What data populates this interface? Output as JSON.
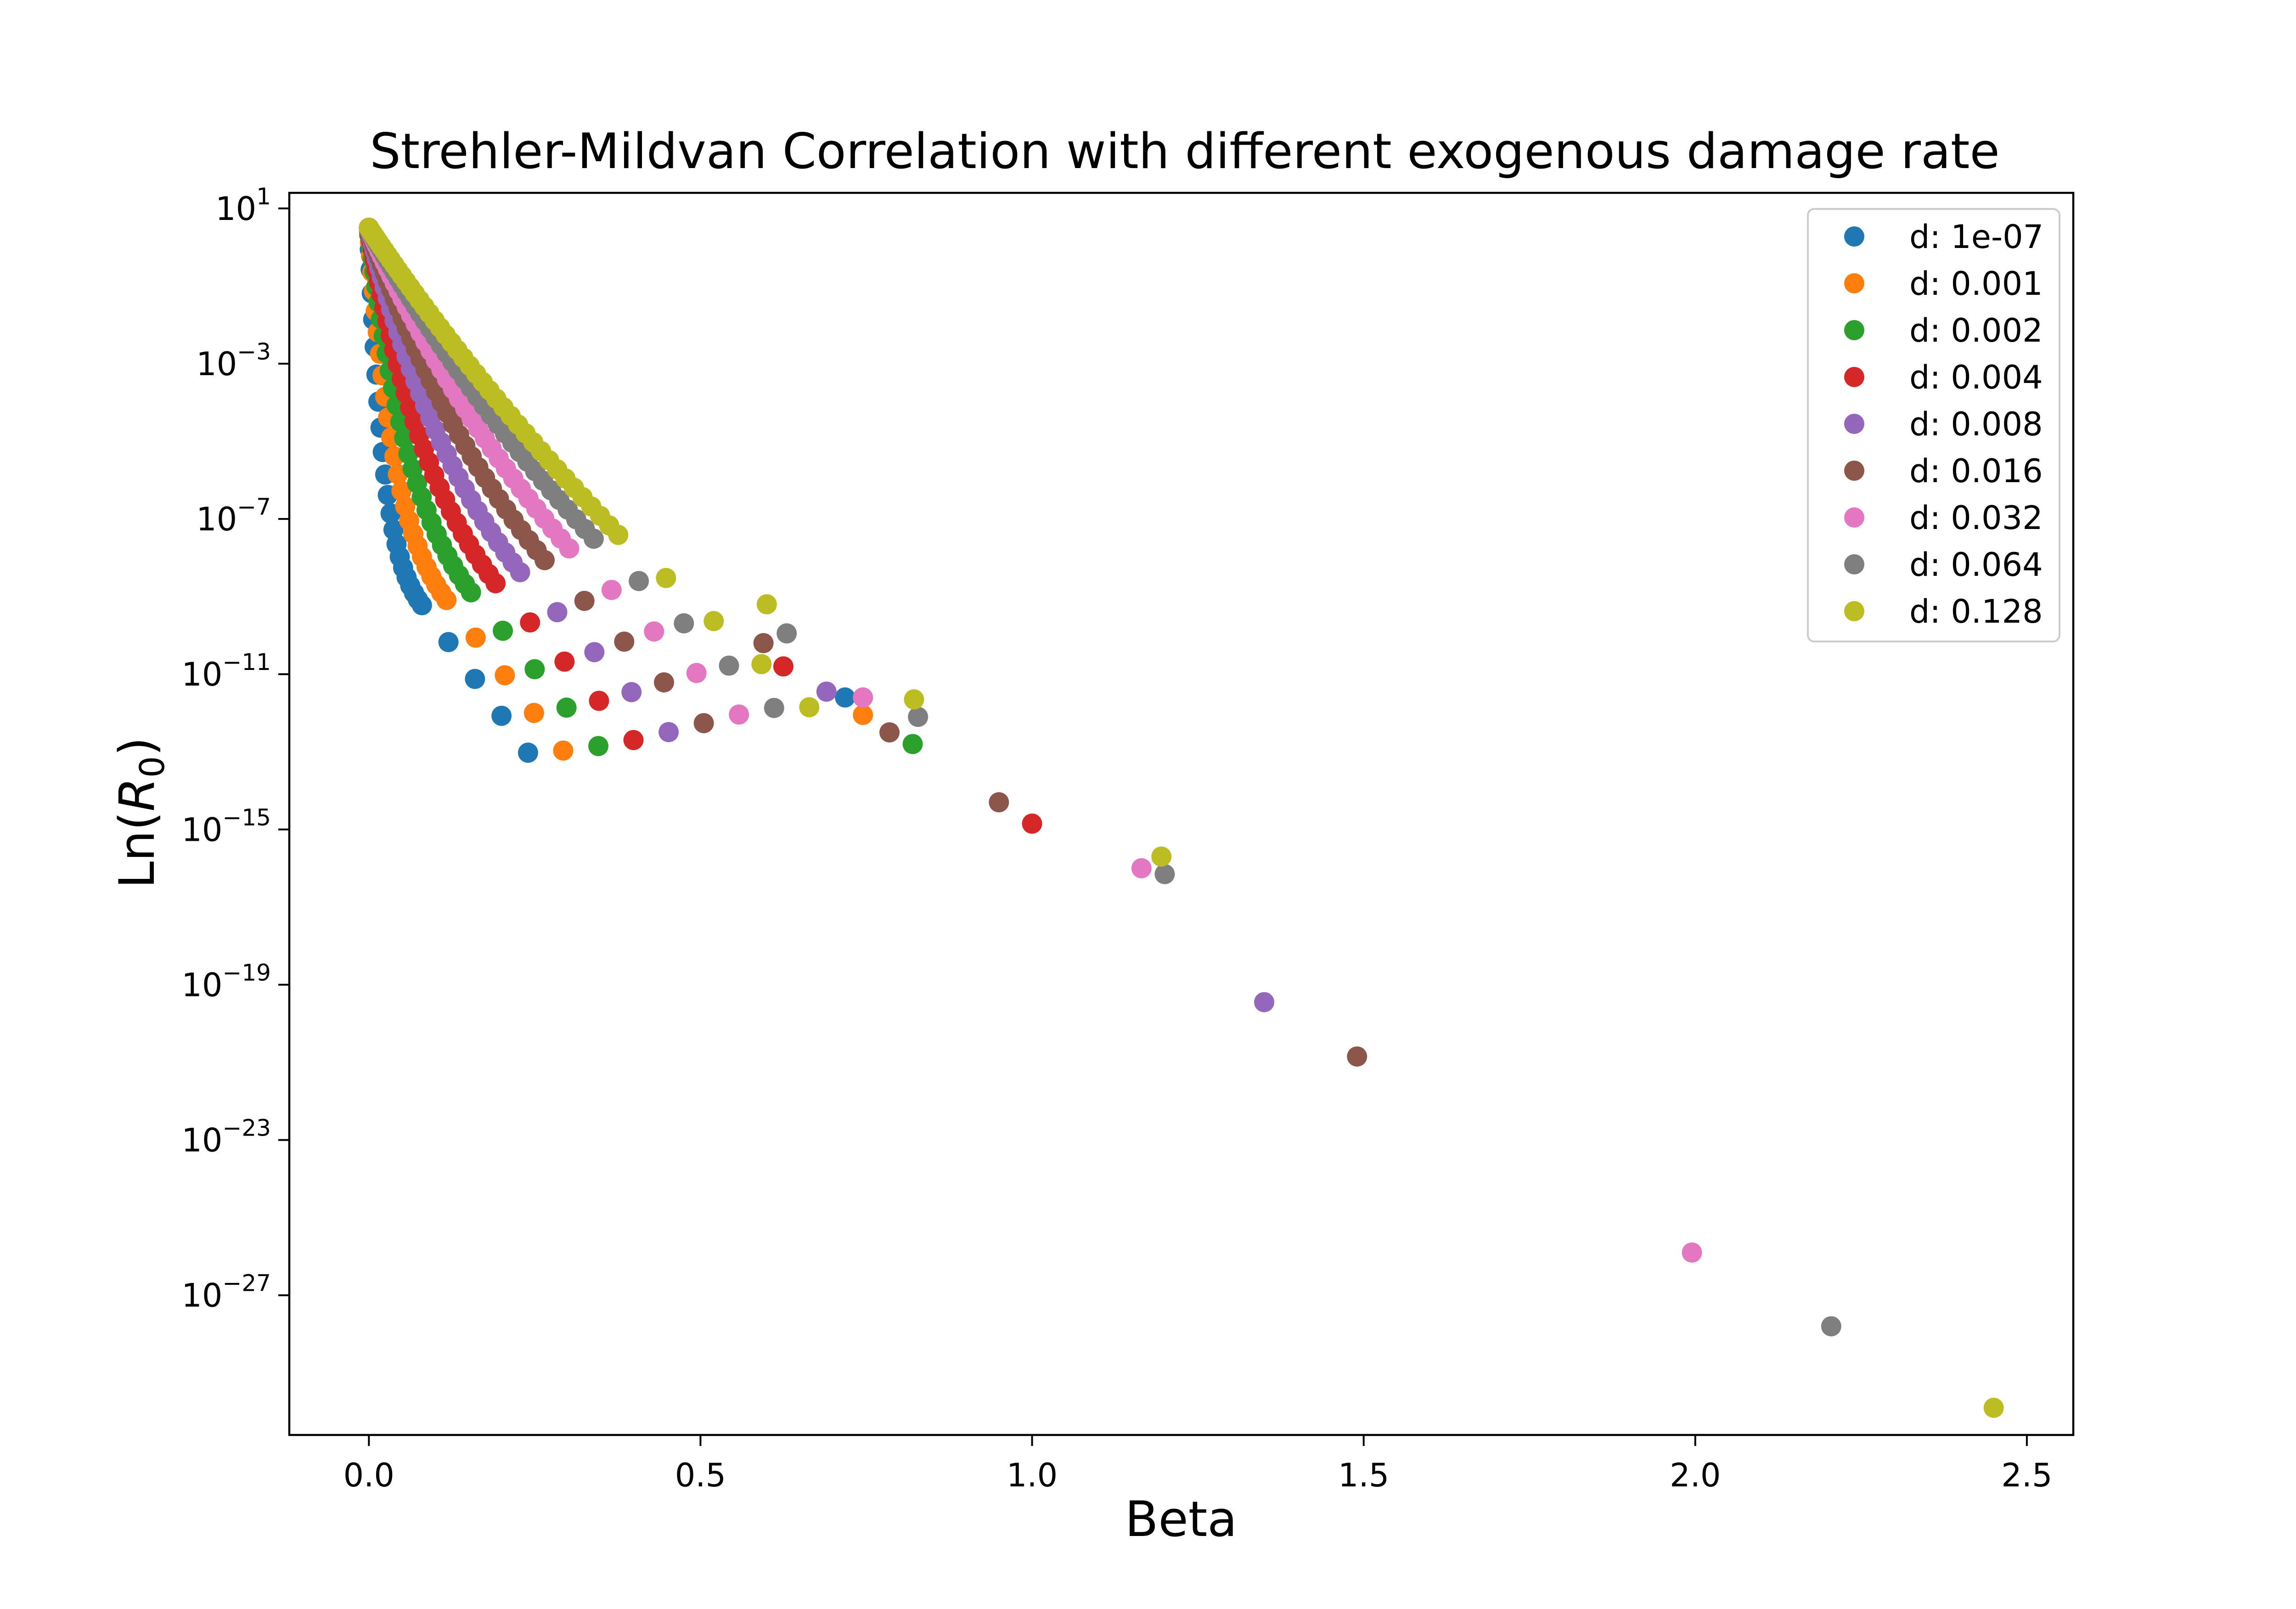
{
  "chart_data": {
    "type": "scatter",
    "title": "Strehler-Mildvan Correlation with different exogenous damage rate",
    "xlabel": "Beta",
    "ylabel": "Ln(R₀)",
    "ylabel_base": "Ln(",
    "ylabel_var": "R",
    "ylabel_sub": "0",
    "ylabel_close": ")",
    "xscale": "linear",
    "yscale": "log",
    "xlim": [
      -0.12,
      2.57
    ],
    "ylim": [
      -30.6,
      1.4
    ],
    "xticks": [
      0.0,
      0.5,
      1.0,
      1.5,
      2.0,
      2.5
    ],
    "xtick_labels": [
      "0.0",
      "0.5",
      "1.0",
      "1.5",
      "2.0",
      "2.5"
    ],
    "ytick_exponents": [
      1,
      -3,
      -7,
      -11,
      -15,
      -19,
      -23,
      -27
    ],
    "ytick_base": "10",
    "ytick_exponent_labels": [
      "1",
      "−3",
      "−7",
      "−11",
      "−15",
      "−19",
      "−23",
      "−27"
    ],
    "grid": false,
    "legend_position": "top-right",
    "series": [
      {
        "name": "d: 1e-07",
        "color": "#1f77b4",
        "tail": [
          [
            0.718,
            -11.6
          ]
        ]
      },
      {
        "name": "d: 0.001",
        "color": "#ff7f0e",
        "tail": [
          [
            0.745,
            -12.05
          ]
        ]
      },
      {
        "name": "d: 0.002",
        "color": "#2ca02c",
        "tail": [
          [
            0.82,
            -12.8
          ]
        ]
      },
      {
        "name": "d: 0.004",
        "color": "#d62728",
        "tail": [
          [
            0.625,
            -10.8
          ],
          [
            1.0,
            -14.85
          ]
        ]
      },
      {
        "name": "d: 0.008",
        "color": "#9467bd",
        "tail": [
          [
            0.69,
            -11.45
          ],
          [
            1.35,
            -19.45
          ]
        ]
      },
      {
        "name": "d: 0.016",
        "color": "#8c564b",
        "tail": [
          [
            0.595,
            -10.2
          ],
          [
            0.785,
            -12.5
          ],
          [
            0.95,
            -14.3
          ],
          [
            1.49,
            -20.85
          ]
        ]
      },
      {
        "name": "d: 0.032",
        "color": "#e377c2",
        "tail": [
          [
            0.745,
            -11.6
          ],
          [
            1.165,
            -16.0
          ],
          [
            1.995,
            -25.9
          ]
        ]
      },
      {
        "name": "d: 0.064",
        "color": "#7f7f7f",
        "tail": [
          [
            0.63,
            -9.95
          ],
          [
            0.828,
            -12.1
          ],
          [
            1.2,
            -16.15
          ],
          [
            2.205,
            -27.8
          ]
        ]
      },
      {
        "name": "d: 0.128",
        "color": "#bcbd22",
        "tail": [
          [
            0.6,
            -9.2
          ],
          [
            0.822,
            -11.65
          ],
          [
            1.195,
            -15.7
          ],
          [
            2.45,
            -29.9
          ]
        ]
      }
    ]
  }
}
